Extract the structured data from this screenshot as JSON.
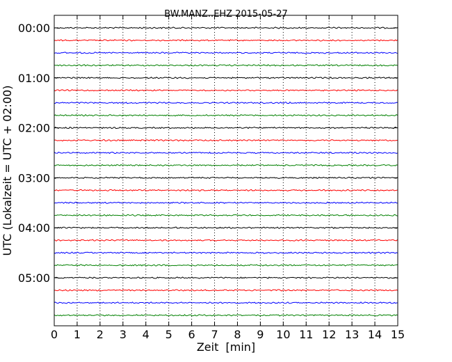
{
  "chart_data": {
    "type": "line",
    "title": "BW.MANZ..EHZ 2015-05-27",
    "xlabel": "Zeit  [min]",
    "ylabel": "UTC (Lokalzeit = UTC + 02:00)",
    "xlim": [
      0,
      15
    ],
    "x_ticks": [
      "0",
      "1",
      "2",
      "3",
      "4",
      "5",
      "6",
      "7",
      "8",
      "9",
      "10",
      "11",
      "12",
      "13",
      "14",
      "15"
    ],
    "y_ticks": [
      "00:00",
      "01:00",
      "02:00",
      "03:00",
      "04:00",
      "05:00"
    ],
    "grid": "vertical dotted",
    "trace_interval_min": 15,
    "traces": [
      "00:00",
      "00:15",
      "00:30",
      "00:45",
      "01:00",
      "01:15",
      "01:30",
      "01:45",
      "02:00",
      "02:15",
      "02:30",
      "02:45",
      "03:00",
      "03:15",
      "03:30",
      "03:45",
      "04:00",
      "04:15",
      "04:30",
      "04:45",
      "05:00",
      "05:15",
      "05:30",
      "05:45"
    ],
    "colors": [
      "#000000",
      "#ff0000",
      "#0000ff",
      "#008000"
    ]
  }
}
